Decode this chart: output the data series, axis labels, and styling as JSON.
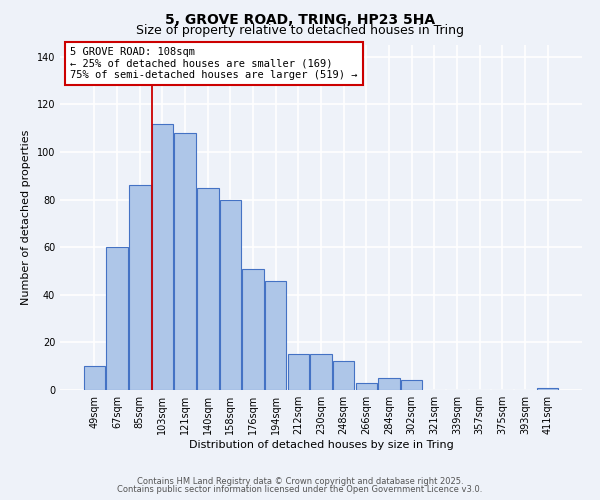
{
  "title": "5, GROVE ROAD, TRING, HP23 5HA",
  "subtitle": "Size of property relative to detached houses in Tring",
  "xlabel": "Distribution of detached houses by size in Tring",
  "ylabel": "Number of detached properties",
  "bar_labels": [
    "49sqm",
    "67sqm",
    "85sqm",
    "103sqm",
    "121sqm",
    "140sqm",
    "158sqm",
    "176sqm",
    "194sqm",
    "212sqm",
    "230sqm",
    "248sqm",
    "266sqm",
    "284sqm",
    "302sqm",
    "321sqm",
    "339sqm",
    "357sqm",
    "375sqm",
    "393sqm",
    "411sqm"
  ],
  "bar_values": [
    10,
    60,
    86,
    112,
    108,
    85,
    80,
    51,
    46,
    15,
    15,
    12,
    3,
    5,
    4,
    0,
    0,
    0,
    0,
    0,
    1
  ],
  "bar_color": "#aec6e8",
  "bar_edge_color": "#4472c4",
  "ylim": [
    0,
    145
  ],
  "yticks": [
    0,
    20,
    40,
    60,
    80,
    100,
    120,
    140
  ],
  "property_line_label": "103sqm",
  "annotation_title": "5 GROVE ROAD: 108sqm",
  "annotation_line1": "← 25% of detached houses are smaller (169)",
  "annotation_line2": "75% of semi-detached houses are larger (519) →",
  "annotation_box_facecolor": "#ffffff",
  "annotation_box_edgecolor": "#cc0000",
  "background_color": "#eef2f9",
  "grid_color": "#ffffff",
  "title_fontsize": 10,
  "subtitle_fontsize": 9,
  "axis_label_fontsize": 8,
  "tick_fontsize": 7,
  "annotation_fontsize": 7.5,
  "footer_fontsize": 6,
  "footer_line1": "Contains HM Land Registry data © Crown copyright and database right 2025.",
  "footer_line2": "Contains public sector information licensed under the Open Government Licence v3.0."
}
